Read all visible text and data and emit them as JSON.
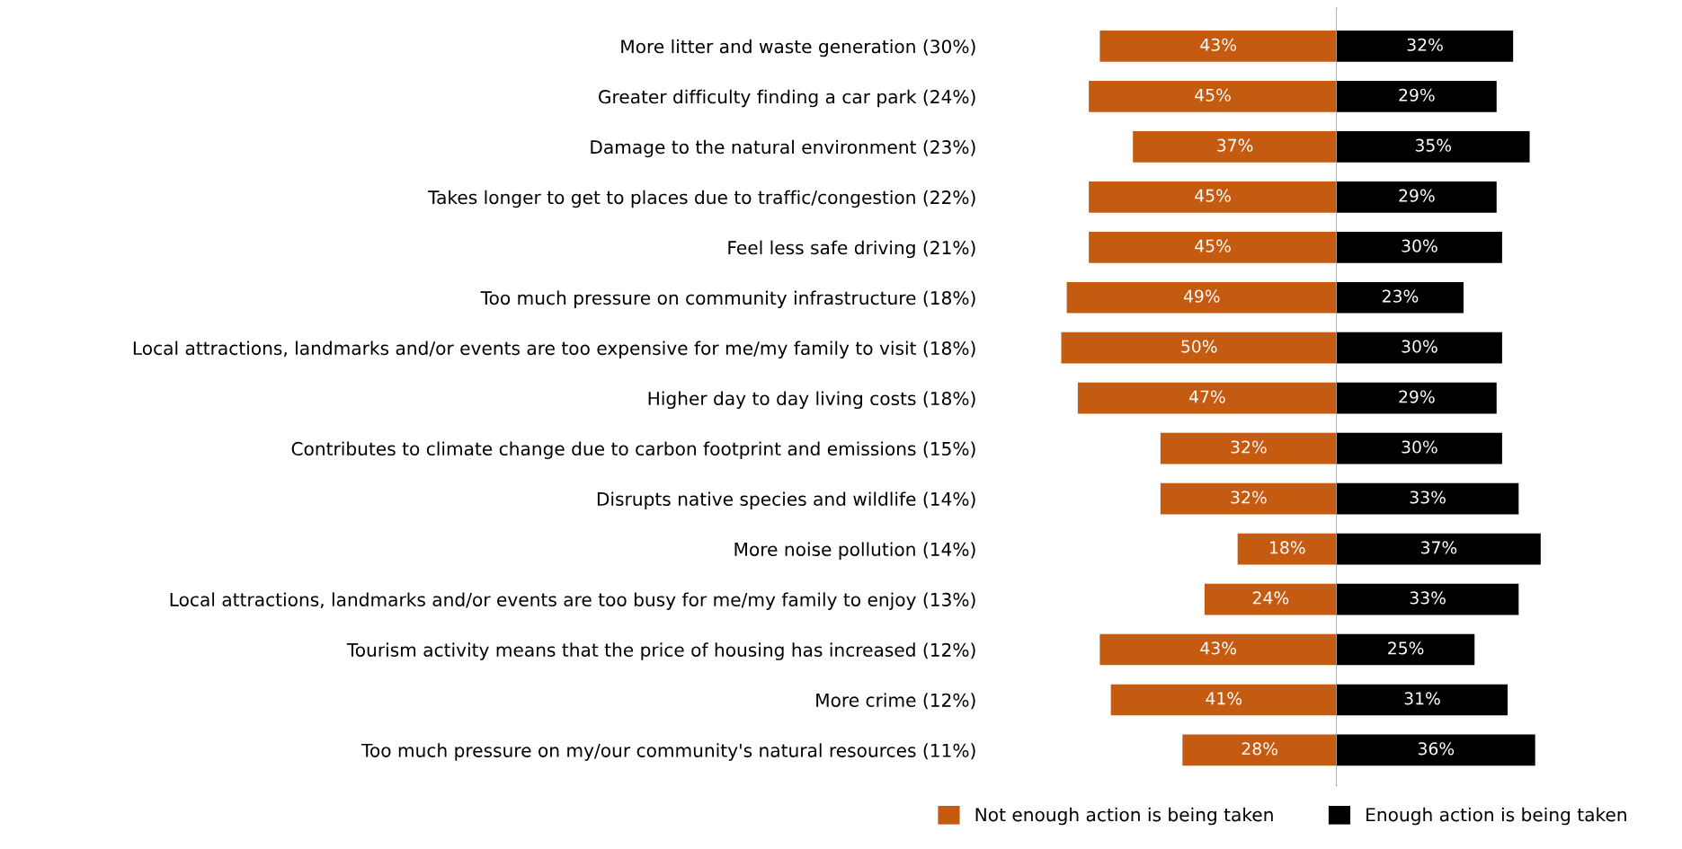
{
  "chart_data": [
    {
      "type": "bar",
      "orientation": "horizontal",
      "categories": [
        "More litter and waste generation (30%)",
        "Greater difficulty finding a car park (24%)",
        "Damage to the natural environment (23%)",
        "Takes longer to get to places due to traffic/congestion (22%)",
        "Feel less safe driving (21%)",
        "Too much pressure on community infrastructure (18%)",
        "Local attractions, landmarks and/or events are too expensive for me/my family to visit (18%)",
        "Higher day to day living costs (18%)",
        "Contributes to climate change due to carbon footprint and emissions (15%)",
        "Disrupts native species and wildlife (14%)",
        "More noise pollution (14%)",
        "Local attractions, landmarks and/or events are too busy for me/my family to enjoy (13%)",
        "Tourism activity means that the price of housing has increased (12%)",
        "More crime (12%)",
        "Too much pressure on my/our community's natural resources (11%)"
      ],
      "series": [
        {
          "name": "Not enough action is being taken",
          "color": "#c55a11",
          "values": [
            43,
            45,
            37,
            45,
            45,
            49,
            50,
            47,
            32,
            32,
            18,
            24,
            43,
            41,
            28
          ],
          "value_labels": [
            "43%",
            "45%",
            "37%",
            "45%",
            "45%",
            "49%",
            "50%",
            "47%",
            "32%",
            "32%",
            "18%",
            "24%",
            "43%",
            "41%",
            "28%"
          ]
        }
      ],
      "tick_labels": "y",
      "grid": false,
      "legend": "bottom"
    },
    {
      "type": "bar",
      "orientation": "horizontal",
      "categories": [
        null,
        null,
        null,
        null,
        null,
        null,
        null,
        null,
        null,
        null,
        null,
        null,
        null,
        null,
        null
      ],
      "series": [
        {
          "name": "Enough action is being taken",
          "color": "#000000",
          "values": [
            32,
            29,
            35,
            29,
            30,
            23,
            30,
            29,
            30,
            33,
            37,
            33,
            25,
            31,
            36
          ],
          "value_labels": [
            "32%",
            "29%",
            "35%",
            "29%",
            "30%",
            "23%",
            "30%",
            "29%",
            "30%",
            "33%",
            "37%",
            "33%",
            "25%",
            "31%",
            "36%"
          ]
        }
      ],
      "tick_labels": false,
      "grid": false,
      "legend": "bottom"
    }
  ]
}
